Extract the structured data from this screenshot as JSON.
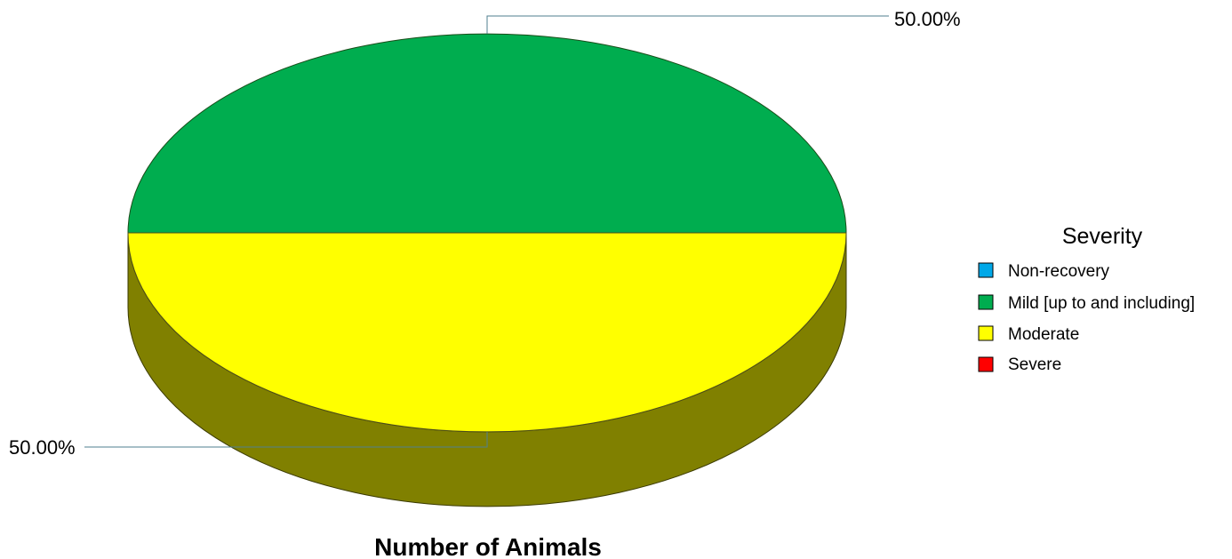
{
  "chart_data": {
    "type": "pie",
    "three_d": true,
    "caption": "Number of Animals",
    "legend": {
      "title": "Severity",
      "placement": "right"
    },
    "slices": [
      {
        "name": "Non-recovery",
        "value": 0,
        "color": "#00a8e8",
        "side_color": "#00547a",
        "label": ""
      },
      {
        "name": "Mild [up to and including]",
        "value": 50,
        "color": "#00ad4f",
        "side_color": "#005a28",
        "label": "50.00%"
      },
      {
        "name": "Moderate",
        "value": 50,
        "color": "#ffff00",
        "side_color": "#808000",
        "label": "50.00%"
      },
      {
        "name": "Severe",
        "value": 0,
        "color": "#ff0000",
        "side_color": "#800000",
        "label": ""
      }
    ]
  }
}
